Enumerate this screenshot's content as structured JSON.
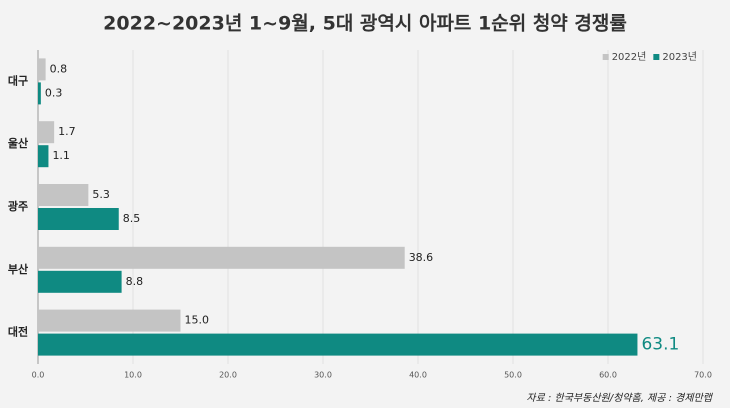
{
  "chart_data": {
    "type": "hbar",
    "title": "2022~2023년 1~9월, 5대 광역시 아파트 1순위 청약 경쟁률",
    "categories": [
      "대구",
      "울산",
      "광주",
      "부산",
      "대전"
    ],
    "series": [
      {
        "name": "2022년",
        "color": "#c4c4c4",
        "values": [
          0.8,
          1.7,
          5.3,
          38.6,
          15.0
        ],
        "value_labels": [
          "0.8",
          "1.7",
          "5.3",
          "38.6",
          "15.0"
        ]
      },
      {
        "name": "2023년",
        "color": "#0f8a82",
        "values": [
          0.3,
          1.1,
          8.5,
          8.8,
          63.1
        ],
        "value_labels": [
          "0.3",
          "1.1",
          "8.5",
          "8.8",
          "63.1"
        ]
      }
    ],
    "xlim": [
      0,
      70
    ],
    "xticks": [
      {
        "value": 0,
        "label": "0.0"
      },
      {
        "value": 10,
        "label": "10.0"
      },
      {
        "value": 20,
        "label": "20.0"
      },
      {
        "value": 30,
        "label": "30.0"
      },
      {
        "value": 40,
        "label": "40.0"
      },
      {
        "value": 50,
        "label": "50.0"
      },
      {
        "value": 60,
        "label": "60.0"
      },
      {
        "value": 70,
        "label": "70.0"
      }
    ],
    "grid": true,
    "legend": "top-right",
    "source": "자료 : 한국부동산원/청약홈, 제공 : 경제만랩"
  }
}
